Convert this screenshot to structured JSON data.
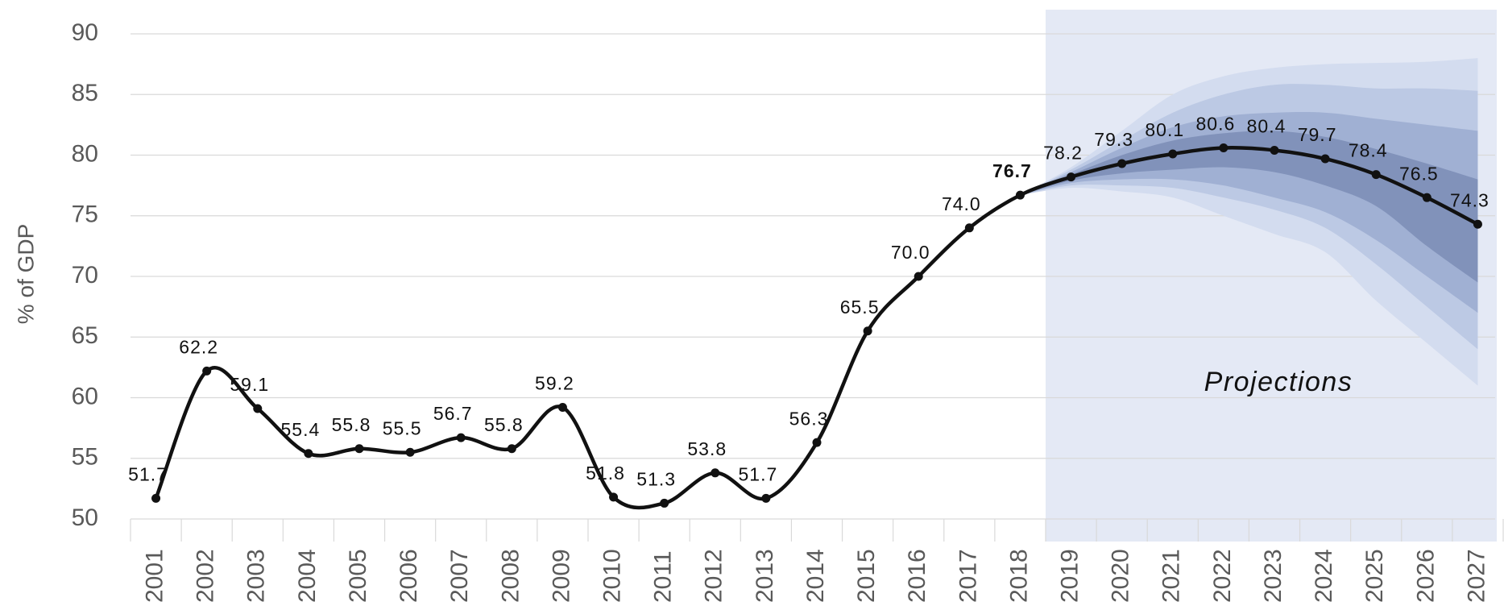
{
  "chart_data": {
    "type": "line",
    "y_label": "% of GDP",
    "annotation": "Projections",
    "categories": [
      "2001",
      "2002",
      "2003",
      "2004",
      "2005",
      "2006",
      "2007",
      "2008",
      "2009",
      "2010",
      "2011",
      "2012",
      "2013",
      "2014",
      "2015",
      "2016",
      "2017",
      "2018",
      "2019",
      "2020",
      "2021",
      "2022",
      "2023",
      "2024",
      "2025",
      "2026",
      "2027"
    ],
    "values": [
      51.7,
      62.2,
      59.1,
      55.4,
      55.8,
      55.5,
      56.7,
      55.8,
      59.2,
      51.8,
      51.3,
      53.8,
      51.7,
      56.3,
      65.5,
      70.0,
      74.0,
      76.7,
      78.2,
      79.3,
      80.1,
      80.6,
      80.4,
      79.7,
      78.4,
      76.5,
      74.3
    ],
    "value_labels": [
      "51.7",
      "62.2",
      "59.1",
      "55.4",
      "55.8",
      "55.5",
      "56.7",
      "55.8",
      "59.2",
      "51.8",
      "51.3",
      "53.8",
      "51.7",
      "56.3",
      "65.5",
      "70.0",
      "74.0",
      "76.7",
      "78.2",
      "79.3",
      "80.1",
      "80.6",
      "80.4",
      "79.7",
      "78.4",
      "76.5",
      "74.3"
    ],
    "color": "#111111",
    "projection_color": "#e4e9f5",
    "bands": [
      {
        "color": "#d3dcef",
        "upper": [
          null,
          null,
          null,
          null,
          null,
          null,
          null,
          null,
          null,
          null,
          null,
          null,
          null,
          null,
          null,
          null,
          null,
          76.7,
          79.0,
          82.0,
          85.0,
          86.5,
          87.2,
          87.5,
          87.6,
          87.7,
          88.0
        ],
        "lower": [
          null,
          null,
          null,
          null,
          null,
          null,
          null,
          null,
          null,
          null,
          null,
          null,
          null,
          null,
          null,
          null,
          null,
          76.7,
          77.3,
          77.0,
          76.5,
          75.0,
          73.5,
          72.0,
          68.0,
          64.5,
          61.0
        ]
      },
      {
        "color": "#bcc9e4",
        "upper": [
          null,
          null,
          null,
          null,
          null,
          null,
          null,
          null,
          null,
          null,
          null,
          null,
          null,
          null,
          null,
          null,
          null,
          76.7,
          78.8,
          81.2,
          83.5,
          85.0,
          85.8,
          85.8,
          85.5,
          85.5,
          85.3
        ],
        "lower": [
          null,
          null,
          null,
          null,
          null,
          null,
          null,
          null,
          null,
          null,
          null,
          null,
          null,
          null,
          null,
          null,
          null,
          76.7,
          77.5,
          77.5,
          77.3,
          76.5,
          75.5,
          74.0,
          71.0,
          67.5,
          64.0
        ]
      },
      {
        "color": "#a0b0d3",
        "upper": [
          null,
          null,
          null,
          null,
          null,
          null,
          null,
          null,
          null,
          null,
          null,
          null,
          null,
          null,
          null,
          null,
          null,
          76.7,
          78.6,
          80.6,
          82.3,
          83.2,
          83.5,
          83.5,
          83.0,
          82.5,
          82.0
        ],
        "lower": [
          null,
          null,
          null,
          null,
          null,
          null,
          null,
          null,
          null,
          null,
          null,
          null,
          null,
          null,
          null,
          null,
          null,
          76.7,
          77.7,
          78.0,
          78.0,
          77.5,
          76.5,
          75.3,
          73.0,
          70.0,
          67.0
        ]
      },
      {
        "color": "#8192ba",
        "upper": [
          null,
          null,
          null,
          null,
          null,
          null,
          null,
          null,
          null,
          null,
          null,
          null,
          null,
          null,
          null,
          null,
          null,
          76.7,
          78.4,
          80.0,
          81.2,
          81.8,
          82.0,
          81.5,
          80.5,
          79.3,
          78.0
        ],
        "lower": [
          null,
          null,
          null,
          null,
          null,
          null,
          null,
          null,
          null,
          null,
          null,
          null,
          null,
          null,
          null,
          null,
          null,
          76.7,
          77.9,
          78.5,
          78.8,
          79.0,
          78.6,
          77.5,
          75.8,
          72.5,
          69.5
        ]
      }
    ],
    "ylim": [
      50,
      90
    ],
    "yticks": [
      50,
      55,
      60,
      65,
      70,
      75,
      80,
      85,
      90
    ],
    "grid": true
  }
}
